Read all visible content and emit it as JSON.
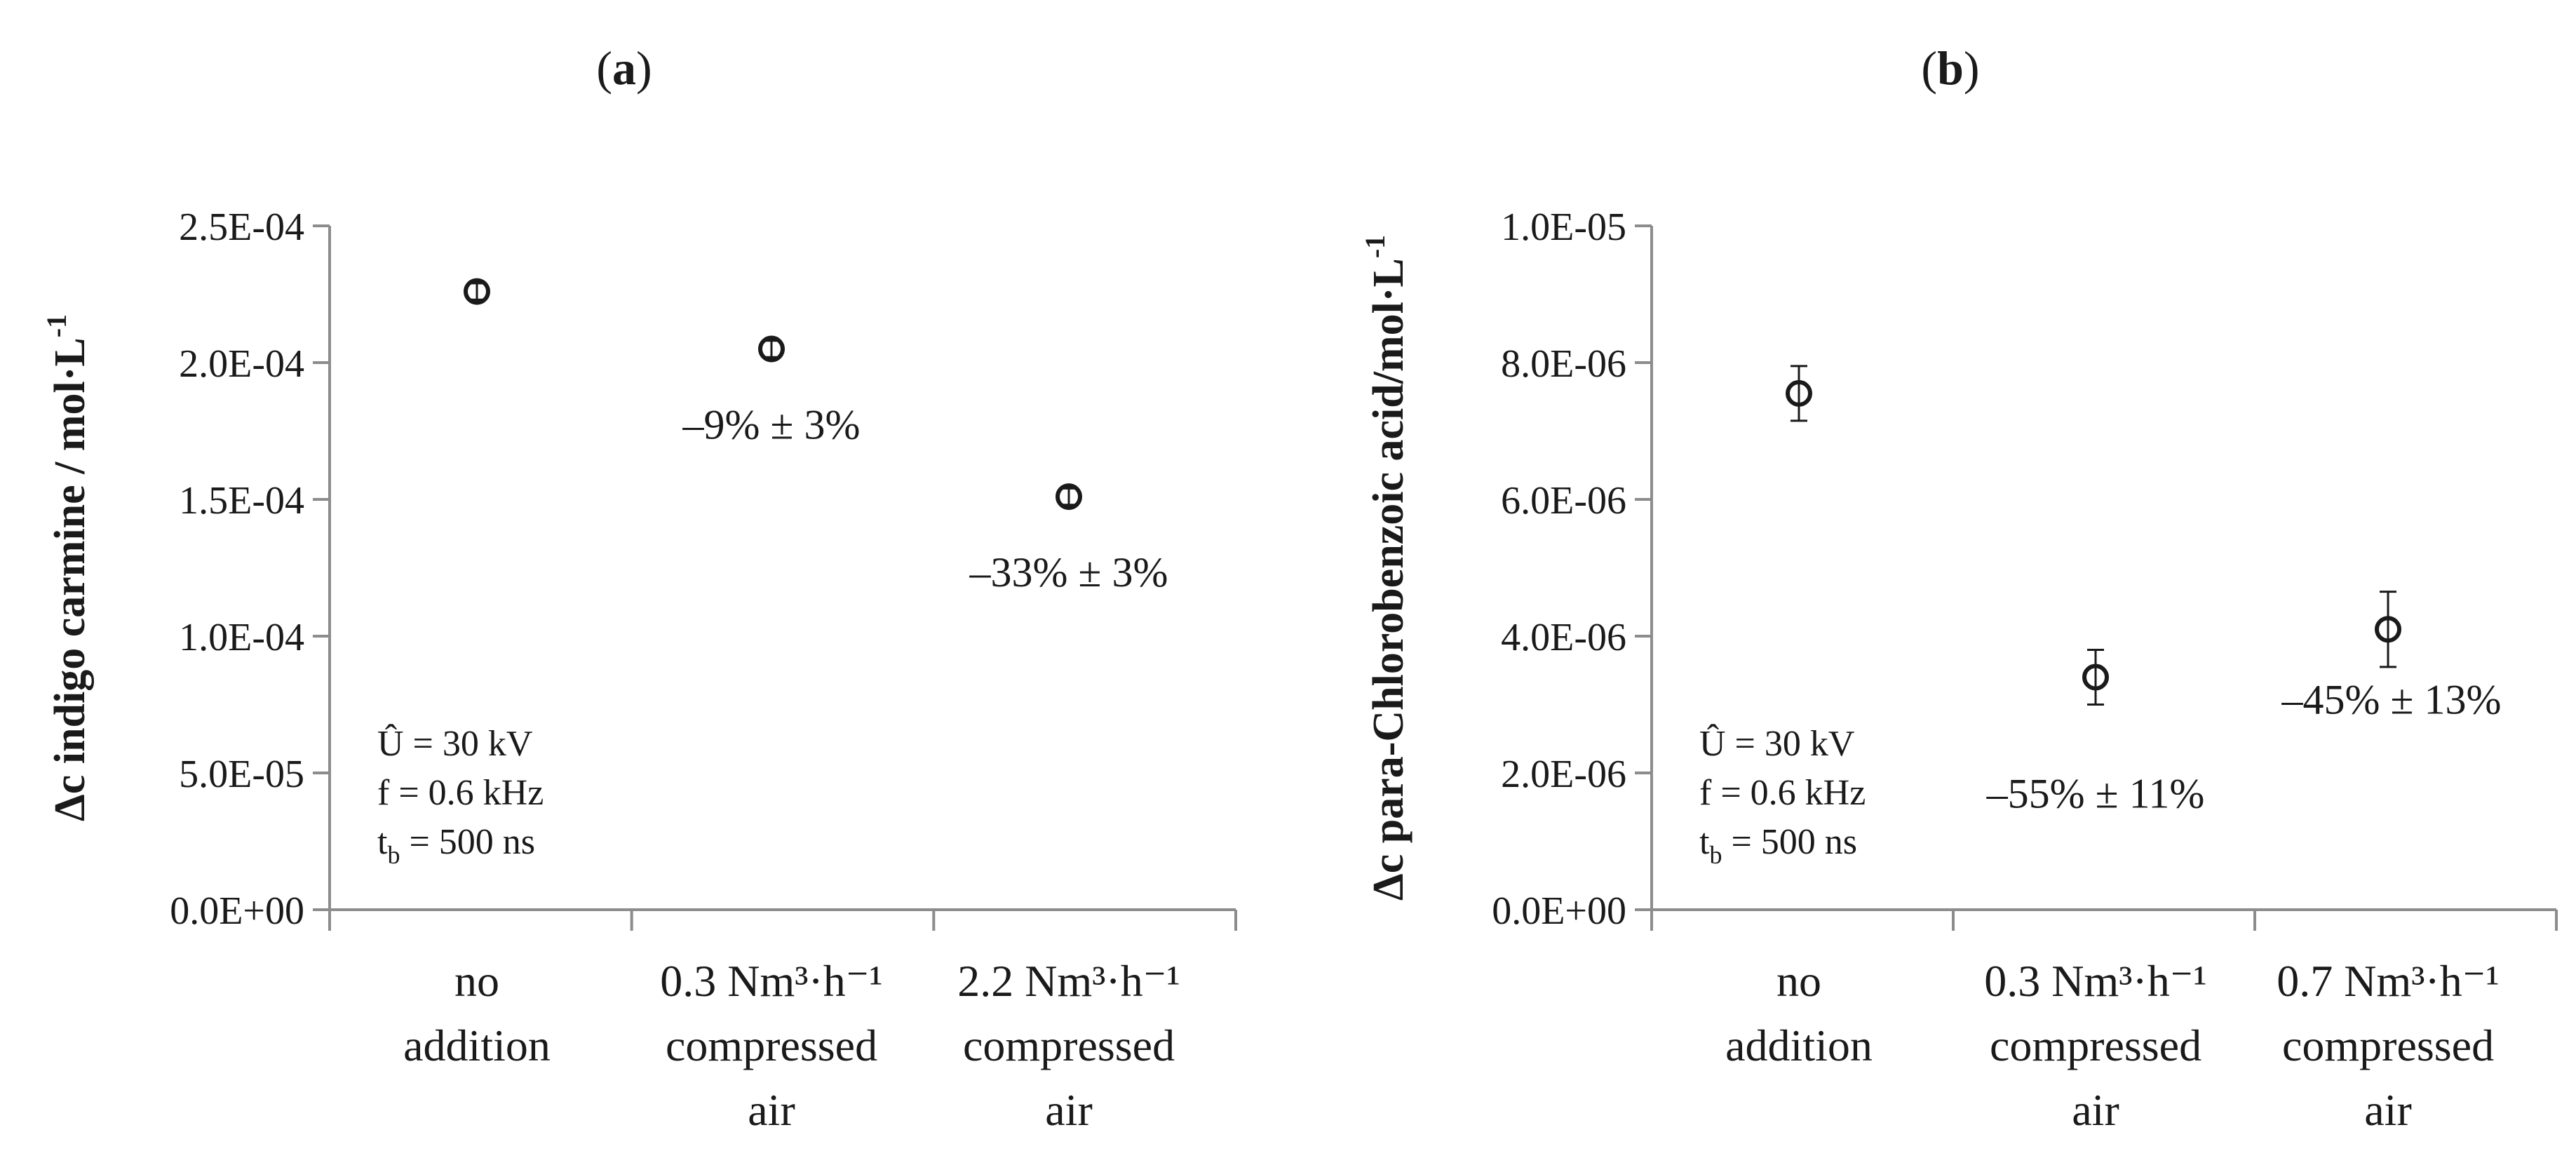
{
  "chart_data": [
    {
      "type": "scatter",
      "panel_label": "(a)",
      "panel_letter": "a",
      "ylabel": "Δc indigo carmine / mol·L⁻¹",
      "ylabel_main": "Δc indigo carmine / mol·L",
      "ylabel_sup": "-1",
      "ylim": [
        0,
        0.00025
      ],
      "yticks": [
        "0.0E+00",
        "5.0E-05",
        "1.0E-04",
        "1.5E-04",
        "2.0E-04",
        "2.5E-04"
      ],
      "ytick_values": [
        0,
        5e-05,
        0.0001,
        0.00015,
        0.0002,
        0.00025
      ],
      "categories": [
        [
          "no",
          "addition"
        ],
        [
          "0.3 Nm³·h⁻¹",
          "compressed",
          "air"
        ],
        [
          "2.2 Nm³·h⁻¹",
          "compressed",
          "air"
        ]
      ],
      "values": [
        0.000226,
        0.000205,
        0.000151
      ],
      "errors": [
        3e-06,
        3e-06,
        3e-06
      ],
      "point_labels": [
        "",
        "–9% ± 3%",
        "–33% ± 3%"
      ],
      "conditions": [
        "Û = 30 kV",
        "f = 0.6 kHz",
        "t_b = 500 ns"
      ],
      "grid": false,
      "marker": "open-circle"
    },
    {
      "type": "scatter",
      "panel_label": "(b)",
      "panel_letter": "b",
      "ylabel": "Δc para-Chlorobenzoic acid/mol·L⁻¹",
      "ylabel_main": "Δc para-Chlorobenzoic acid/mol·L",
      "ylabel_sup": "-1",
      "ylim": [
        0,
        1e-05
      ],
      "yticks": [
        "0.0E+00",
        "2.0E-06",
        "4.0E-06",
        "6.0E-06",
        "8.0E-06",
        "1.0E-05"
      ],
      "ytick_values": [
        0,
        2e-06,
        4e-06,
        6e-06,
        8e-06,
        1e-05
      ],
      "categories": [
        [
          "no",
          "addition"
        ],
        [
          "0.3 Nm³·h⁻¹",
          "compressed",
          "air"
        ],
        [
          "0.7 Nm³·h⁻¹",
          "compressed",
          "air"
        ]
      ],
      "values": [
        7.55e-06,
        3.4e-06,
        4.1e-06
      ],
      "errors": [
        4e-07,
        4e-07,
        5.5e-07
      ],
      "point_labels": [
        "",
        "–55% ± 11%",
        "–45% ± 13%"
      ],
      "conditions": [
        "Û = 30 kV",
        "f = 0.6 kHz",
        "t_b = 500 ns"
      ],
      "grid": false,
      "marker": "open-circle"
    }
  ]
}
